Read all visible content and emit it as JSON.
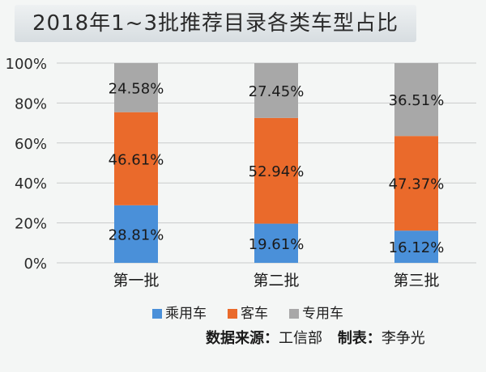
{
  "chart_data": {
    "type": "bar",
    "stacked": true,
    "title": "2018年1~3批推荐目录各类车型占比",
    "categories": [
      "第一批",
      "第二批",
      "第三批"
    ],
    "series": [
      {
        "name": "乘用车",
        "color": "#4a90d9",
        "values": [
          28.81,
          19.61,
          16.12
        ],
        "labels": [
          "28.81%",
          "19.61%",
          "16.12%"
        ]
      },
      {
        "name": "客车",
        "color": "#ea6a2b",
        "values": [
          46.61,
          52.94,
          47.37
        ],
        "labels": [
          "46.61%",
          "52.94%",
          "47.37%"
        ]
      },
      {
        "name": "专用车",
        "color": "#a8a8a8",
        "values": [
          24.58,
          27.45,
          36.51
        ],
        "labels": [
          "24.58%",
          "27.45%",
          "36.51%"
        ]
      }
    ],
    "ylim": [
      0,
      100
    ],
    "yticks": [
      "0%",
      "20%",
      "40%",
      "60%",
      "80%",
      "100%"
    ],
    "grid": true,
    "legend": "bottom"
  },
  "source": {
    "label_source": "数据来源：",
    "source_value": "工信部",
    "label_maker": "制表：",
    "maker_value": "李争光"
  }
}
